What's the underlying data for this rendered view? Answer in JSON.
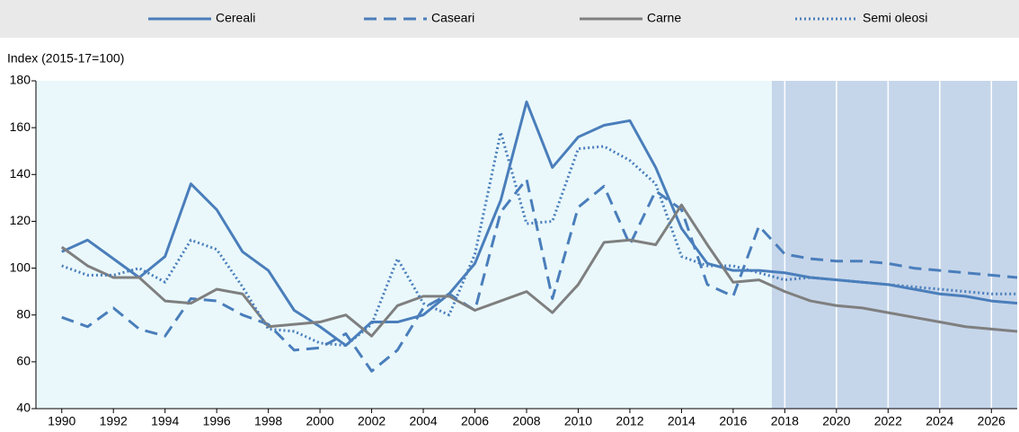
{
  "chart_data": {
    "type": "line",
    "y_label": "Index (2015-17=100)",
    "x": [
      1990,
      1991,
      1992,
      1993,
      1994,
      1995,
      1996,
      1997,
      1998,
      1999,
      2000,
      2001,
      2002,
      2003,
      2004,
      2005,
      2006,
      2007,
      2008,
      2009,
      2010,
      2011,
      2012,
      2013,
      2014,
      2015,
      2016,
      2017,
      2018,
      2019,
      2020,
      2021,
      2022,
      2023,
      2024,
      2025,
      2026,
      2027
    ],
    "series": [
      {
        "name": "Cereali",
        "color": "#4a7ebb",
        "dash": "solid",
        "values": [
          107,
          112,
          104,
          96,
          105,
          136,
          125,
          107,
          99,
          82,
          75,
          67,
          77,
          77,
          80,
          89,
          102,
          129,
          171,
          143,
          156,
          161,
          163,
          143,
          117,
          102,
          99,
          99,
          98,
          96,
          95,
          94,
          93,
          91,
          89,
          88,
          86,
          85
        ]
      },
      {
        "name": "Caseari",
        "color": "#4a7ebb",
        "dash": "dashed",
        "values": [
          79,
          75,
          83,
          74,
          71,
          87,
          86,
          80,
          76,
          65,
          66,
          72,
          56,
          65,
          83,
          89,
          82,
          124,
          138,
          87,
          126,
          135,
          110,
          133,
          125,
          93,
          88,
          118,
          106,
          104,
          103,
          103,
          102,
          100,
          99,
          98,
          97,
          96
        ]
      },
      {
        "name": "Carne",
        "color": "#7f7f7f",
        "dash": "solid",
        "values": [
          109,
          101,
          96,
          96,
          86,
          85,
          91,
          89,
          75,
          76,
          77,
          80,
          71,
          84,
          88,
          88,
          82,
          86,
          90,
          81,
          93,
          111,
          112,
          110,
          127,
          110,
          94,
          95,
          90,
          86,
          84,
          83,
          81,
          79,
          77,
          75,
          74,
          73
        ]
      },
      {
        "name": "Semi oleosi",
        "color": "#4a7ebb",
        "dash": "dotted",
        "values": [
          101,
          97,
          97,
          100,
          94,
          112,
          108,
          92,
          74,
          73,
          68,
          67,
          76,
          104,
          85,
          80,
          106,
          158,
          119,
          120,
          151,
          152,
          146,
          136,
          105,
          101,
          101,
          98,
          95,
          96,
          95,
          94,
          93,
          92,
          91,
          90,
          89,
          89
        ]
      }
    ],
    "xlim": [
      1989,
      2027
    ],
    "xticks": [
      1990,
      1992,
      1994,
      1996,
      1998,
      2000,
      2002,
      2004,
      2006,
      2008,
      2010,
      2012,
      2014,
      2016,
      2018,
      2020,
      2022,
      2024,
      2026
    ],
    "ylim": [
      40,
      180
    ],
    "yticks": [
      40,
      60,
      80,
      100,
      120,
      140,
      160,
      180
    ],
    "projection_start": 2017.5,
    "legend": "top"
  }
}
